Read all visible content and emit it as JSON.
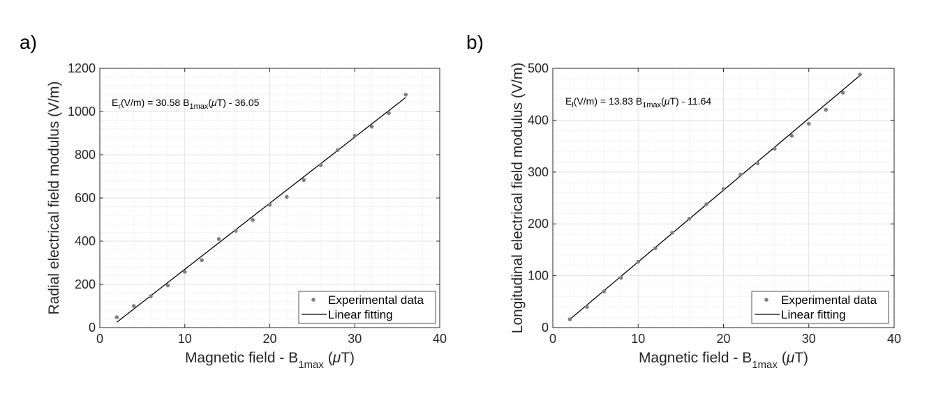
{
  "chart_data": [
    {
      "panel_label": "a)",
      "type": "scatter",
      "xlabel": "Magnetic field - B",
      "xlabel_sub": "1max",
      "xlabel_unit_open": " (",
      "xlabel_unit_mu": "μ",
      "xlabel_unit_close": "T)",
      "ylabel": "Radial electrical field modulus (V/m)",
      "xlim": [
        0,
        40
      ],
      "ylim": [
        0,
        1200
      ],
      "xticks": [
        0,
        10,
        20,
        30,
        40
      ],
      "yticks": [
        0,
        200,
        400,
        600,
        800,
        1000,
        1200
      ],
      "grid": true,
      "legend_position": "bottom-right",
      "equation": {
        "prefix": "E",
        "sub": "r",
        "mid": "(V/m) = 30.58 B",
        "sub2": "1max",
        "open": "(",
        "mu": "μ",
        "tail": "T) - 36.05"
      },
      "series": [
        {
          "name": "Experimental data",
          "style": "markers",
          "x": [
            2,
            4,
            6,
            8,
            10,
            12,
            14,
            16,
            18,
            20,
            22,
            24,
            26,
            28,
            30,
            32,
            34,
            36
          ],
          "y": [
            48,
            100,
            145,
            195,
            258,
            312,
            410,
            448,
            498,
            568,
            605,
            683,
            752,
            822,
            888,
            930,
            993,
            1078
          ]
        },
        {
          "name": "Linear fitting",
          "style": "line",
          "slope": 30.58,
          "intercept": -36.05,
          "x_range": [
            2,
            36
          ]
        }
      ]
    },
    {
      "panel_label": "b)",
      "type": "scatter",
      "xlabel": "Magnetic field - B",
      "xlabel_sub": "1max",
      "xlabel_unit_open": " (",
      "xlabel_unit_mu": "μ",
      "xlabel_unit_close": "T)",
      "ylabel": "Longitudinal electrical field modulus (V/m)",
      "xlim": [
        0,
        40
      ],
      "ylim": [
        0,
        500
      ],
      "xticks": [
        0,
        10,
        20,
        30,
        40
      ],
      "yticks": [
        0,
        100,
        200,
        300,
        400,
        500
      ],
      "grid": true,
      "legend_position": "bottom-right",
      "equation": {
        "prefix": "E",
        "sub": "l",
        "mid": "(V/m) = 13.83 B",
        "sub2": "1max",
        "open": "(",
        "mu": "μ",
        "tail": "T) - 11.64"
      },
      "series": [
        {
          "name": "Experimental data",
          "style": "markers",
          "x": [
            2,
            4,
            6,
            8,
            10,
            12,
            14,
            16,
            18,
            20,
            22,
            24,
            26,
            28,
            30,
            32,
            34,
            36
          ],
          "y": [
            16,
            40,
            70,
            96,
            127,
            153,
            183,
            210,
            238,
            267,
            295,
            317,
            345,
            370,
            393,
            420,
            453,
            488
          ]
        },
        {
          "name": "Linear fitting",
          "style": "line",
          "slope": 13.83,
          "intercept": -11.64,
          "x_range": [
            2,
            36
          ]
        }
      ]
    }
  ]
}
